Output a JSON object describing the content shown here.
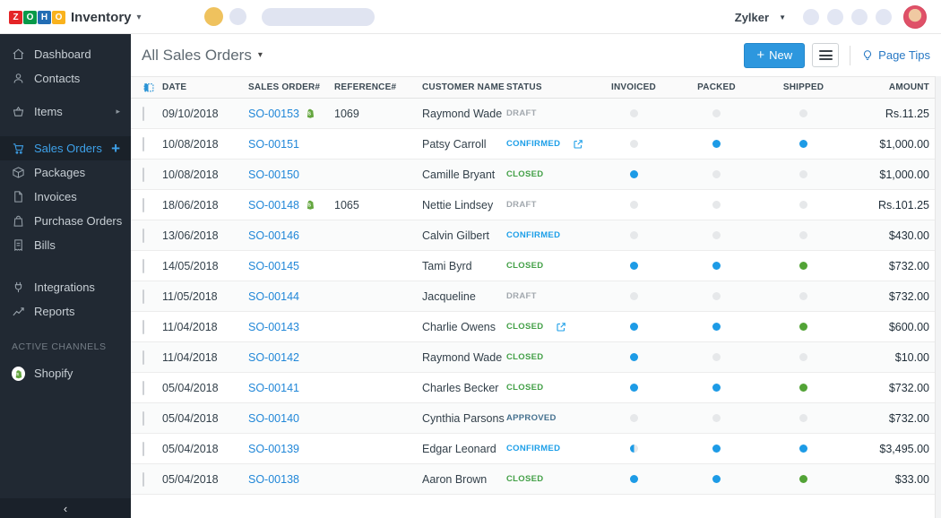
{
  "topbar": {
    "logo": {
      "tiles": [
        {
          "letter": "Z",
          "color": "#e42527"
        },
        {
          "letter": "O",
          "color": "#089949"
        },
        {
          "letter": "H",
          "color": "#226db4"
        },
        {
          "letter": "O",
          "color": "#f9b21d"
        }
      ],
      "product": "Inventory"
    },
    "org_name": "Zylker",
    "placeholders": {
      "yellow_dot": true,
      "gray_dot": true,
      "pill": true,
      "right_circle_count": 4
    }
  },
  "sidebar": {
    "items": [
      {
        "label": "Dashboard",
        "icon": "home-icon",
        "gap": 0
      },
      {
        "label": "Contacts",
        "icon": "person-icon",
        "gap": 0
      },
      {
        "label": "Items",
        "icon": "basket-icon",
        "gap": 10,
        "trailing": "chevron"
      },
      {
        "label": "Sales Orders",
        "icon": "cart-icon",
        "gap": 14,
        "active": true,
        "trailing": "plus"
      },
      {
        "label": "Packages",
        "icon": "package-icon",
        "gap": 0
      },
      {
        "label": "Invoices",
        "icon": "invoice-icon",
        "gap": 0
      },
      {
        "label": "Purchase Orders",
        "icon": "purchase-bag-icon",
        "gap": 0
      },
      {
        "label": "Bills",
        "icon": "bill-icon",
        "gap": 0
      },
      {
        "label": "Integrations",
        "icon": "plug-icon",
        "gap": 20
      },
      {
        "label": "Reports",
        "icon": "chart-icon",
        "gap": 0
      },
      {
        "type": "section",
        "label": "ACTIVE CHANNELS",
        "gap": 14
      },
      {
        "label": "Shopify",
        "icon": "shopify-icon",
        "gap": 4
      }
    ],
    "collapse_label": "‹"
  },
  "page": {
    "title": "All Sales Orders",
    "new_button": "New",
    "page_tips": "Page Tips"
  },
  "table": {
    "columns": [
      "DATE",
      "SALES ORDER#",
      "REFERENCE#",
      "CUSTOMER NAME",
      "STATUS",
      "INVOICED",
      "PACKED",
      "SHIPPED",
      "AMOUNT"
    ],
    "rows": [
      {
        "date": "09/10/2018",
        "so": "SO-00153",
        "shopify": true,
        "ref": "1069",
        "customer": "Raymond Wade",
        "status": "DRAFT",
        "dropship": false,
        "invoiced": "pending",
        "packed": "pending",
        "shipped": "pending",
        "amount": "Rs.11.25"
      },
      {
        "date": "10/08/2018",
        "so": "SO-00151",
        "shopify": false,
        "ref": "",
        "customer": "Patsy Carroll",
        "status": "CONFIRMED",
        "dropship": true,
        "invoiced": "pending",
        "packed": "done",
        "shipped": "done",
        "amount": "$1,000.00"
      },
      {
        "date": "10/08/2018",
        "so": "SO-00150",
        "shopify": false,
        "ref": "",
        "customer": "Camille Bryant",
        "status": "CLOSED",
        "dropship": false,
        "invoiced": "done",
        "packed": "pending",
        "shipped": "pending",
        "amount": "$1,000.00"
      },
      {
        "date": "18/06/2018",
        "so": "SO-00148",
        "shopify": true,
        "ref": "1065",
        "customer": "Nettie Lindsey",
        "status": "DRAFT",
        "dropship": false,
        "invoiced": "pending",
        "packed": "pending",
        "shipped": "pending",
        "amount": "Rs.101.25"
      },
      {
        "date": "13/06/2018",
        "so": "SO-00146",
        "shopify": false,
        "ref": "",
        "customer": "Calvin Gilbert",
        "status": "CONFIRMED",
        "dropship": false,
        "invoiced": "pending",
        "packed": "pending",
        "shipped": "pending",
        "amount": "$430.00"
      },
      {
        "date": "14/05/2018",
        "so": "SO-00145",
        "shopify": false,
        "ref": "",
        "customer": "Tami Byrd",
        "status": "CLOSED",
        "dropship": false,
        "invoiced": "done",
        "packed": "done",
        "shipped": "delivered",
        "amount": "$732.00"
      },
      {
        "date": "11/05/2018",
        "so": "SO-00144",
        "shopify": false,
        "ref": "",
        "customer": "Jacqueline",
        "status": "DRAFT",
        "dropship": false,
        "invoiced": "pending",
        "packed": "pending",
        "shipped": "pending",
        "amount": "$732.00"
      },
      {
        "date": "11/04/2018",
        "so": "SO-00143",
        "shopify": false,
        "ref": "",
        "customer": "Charlie Owens",
        "status": "CLOSED",
        "dropship": true,
        "invoiced": "done",
        "packed": "done",
        "shipped": "delivered",
        "amount": "$600.00"
      },
      {
        "date": "11/04/2018",
        "so": "SO-00142",
        "shopify": false,
        "ref": "",
        "customer": "Raymond Wade",
        "status": "CLOSED",
        "dropship": false,
        "invoiced": "done",
        "packed": "pending",
        "shipped": "pending",
        "amount": "$10.00"
      },
      {
        "date": "05/04/2018",
        "so": "SO-00141",
        "shopify": false,
        "ref": "",
        "customer": "Charles Becker",
        "status": "CLOSED",
        "dropship": false,
        "invoiced": "done",
        "packed": "done",
        "shipped": "delivered",
        "amount": "$732.00"
      },
      {
        "date": "05/04/2018",
        "so": "SO-00140",
        "shopify": false,
        "ref": "",
        "customer": "Cynthia Parsons",
        "status": "APPROVED",
        "dropship": false,
        "invoiced": "pending",
        "packed": "pending",
        "shipped": "pending",
        "amount": "$732.00"
      },
      {
        "date": "05/04/2018",
        "so": "SO-00139",
        "shopify": false,
        "ref": "",
        "customer": "Edgar Leonard",
        "status": "CONFIRMED",
        "dropship": false,
        "invoiced": "half",
        "packed": "done",
        "shipped": "done",
        "amount": "$3,495.00"
      },
      {
        "date": "05/04/2018",
        "so": "SO-00138",
        "shopify": false,
        "ref": "",
        "customer": "Aaron Brown",
        "status": "CLOSED",
        "dropship": false,
        "invoiced": "done",
        "packed": "done",
        "shipped": "delivered",
        "amount": "$33.00"
      }
    ]
  },
  "colors": {
    "accent": "#2d97de",
    "sidebar_bg": "#212933",
    "status": {
      "DRAFT": "#a2a8ae",
      "CONFIRMED": "#1d9fe8",
      "CLOSED": "#43a047",
      "APPROVED": "#44708e"
    },
    "dots": {
      "pending": "#e6e8ea",
      "done": "#1d9be6",
      "delivered": "#52a336"
    },
    "shopify_green": "#64a63f"
  }
}
